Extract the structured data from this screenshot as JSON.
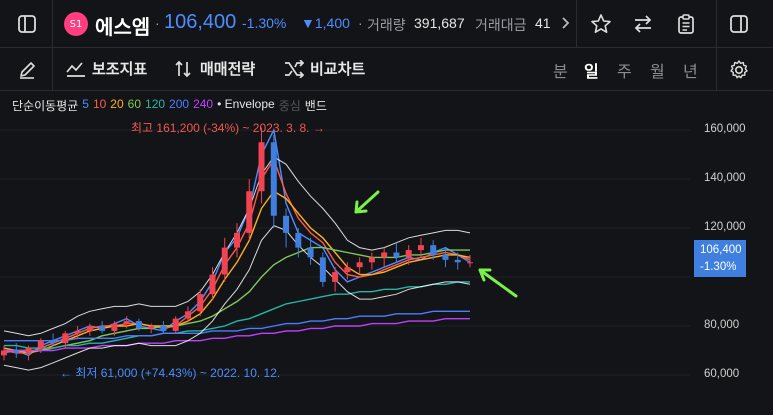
{
  "header": {
    "stock_symbol_icon_text": "S1",
    "stock_name": "에스엠",
    "price": "106,400",
    "change_pct": "-1.30%",
    "change_abs": "▼1,400",
    "volume_label": "거래량",
    "volume": "391,687",
    "amount_label": "거래대금",
    "amount": "41",
    "icons": [
      "sidebar-toggle-icon",
      "chevron-right-icon",
      "star-icon",
      "swap-icon",
      "clipboard-icon",
      "panel-toggle-icon"
    ]
  },
  "toolbar": {
    "items": [
      {
        "label": "보조지표",
        "icon": "indicator-icon"
      },
      {
        "label": "매매전략",
        "icon": "strategy-icon"
      },
      {
        "label": "비교차트",
        "icon": "compare-icon"
      }
    ],
    "periods": [
      {
        "label": "분",
        "active": false
      },
      {
        "label": "일",
        "active": true
      },
      {
        "label": "주",
        "active": false
      },
      {
        "label": "월",
        "active": false
      },
      {
        "label": "년",
        "active": false
      }
    ]
  },
  "legend": {
    "title": "단순이동평균",
    "periods": [
      {
        "label": "5",
        "color": "#4d8dff"
      },
      {
        "label": "10",
        "color": "#ff5a4a"
      },
      {
        "label": "20",
        "color": "#ffb020"
      },
      {
        "label": "60",
        "color": "#80c85a"
      },
      {
        "label": "120",
        "color": "#26b5a5"
      },
      {
        "label": "200",
        "color": "#4d7dff"
      },
      {
        "label": "240",
        "color": "#c040ff"
      }
    ],
    "envelope": "• Envelope",
    "partial": "중심",
    "band": "밴드"
  },
  "annotations": {
    "high": "최고 161,200 (-34%) ~ 2023. 3. 8. →",
    "low": "← 최저 61,000 (+74.43%) ~ 2022. 10. 12."
  },
  "chart_data": {
    "type": "line",
    "y_ticks": [
      "160,000",
      "140,000",
      "120,000",
      "100,000",
      "80,000",
      "60,000"
    ],
    "current_price_tag": {
      "value": "106,400",
      "change": "-1.30%"
    },
    "series": [
      {
        "name": "5",
        "color": "#4d8dff",
        "values": [
          69,
          70,
          68,
          72,
          74,
          76,
          78,
          80,
          79,
          81,
          83,
          80,
          79,
          78,
          82,
          85,
          90,
          98,
          110,
          116,
          128,
          150,
          160,
          130,
          118,
          115,
          112,
          103,
          98,
          100,
          102,
          104,
          106,
          108,
          107,
          110,
          112,
          109,
          106
        ]
      },
      {
        "name": "10",
        "color": "#ff5a4a",
        "values": [
          70,
          69,
          69,
          71,
          73,
          75,
          77,
          79,
          80,
          80,
          81,
          81,
          80,
          79,
          80,
          84,
          88,
          95,
          105,
          112,
          122,
          140,
          148,
          134,
          124,
          118,
          114,
          106,
          101,
          100,
          101,
          103,
          105,
          107,
          108,
          109,
          110,
          109,
          107
        ]
      },
      {
        "name": "20",
        "color": "#ffb020",
        "values": [
          71,
          70,
          69,
          70,
          72,
          74,
          76,
          78,
          79,
          80,
          80,
          81,
          80,
          80,
          80,
          82,
          85,
          91,
          99,
          106,
          115,
          128,
          135,
          132,
          126,
          120,
          116,
          110,
          104,
          101,
          101,
          102,
          104,
          106,
          107,
          108,
          109,
          109,
          108
        ]
      },
      {
        "name": "60",
        "color": "#80c85a",
        "values": [
          70,
          70,
          70,
          70,
          71,
          72,
          73,
          74,
          76,
          77,
          78,
          79,
          79,
          80,
          80,
          81,
          82,
          84,
          87,
          90,
          94,
          100,
          105,
          108,
          110,
          112,
          112,
          111,
          110,
          109,
          108,
          108,
          108,
          109,
          109,
          110,
          111,
          111,
          111
        ]
      },
      {
        "name": "120",
        "color": "#26b5a5",
        "values": [
          72,
          72,
          71,
          71,
          71,
          72,
          72,
          73,
          73,
          74,
          75,
          76,
          76,
          77,
          77,
          78,
          78,
          79,
          80,
          82,
          83,
          85,
          87,
          89,
          90,
          91,
          92,
          93,
          93,
          94,
          94,
          95,
          95,
          96,
          96,
          97,
          97,
          98,
          98
        ]
      },
      {
        "name": "200",
        "color": "#4d7dff",
        "values": [
          74,
          74,
          74,
          74,
          74,
          74,
          75,
          75,
          75,
          75,
          76,
          76,
          76,
          77,
          77,
          77,
          77,
          78,
          78,
          78,
          79,
          79,
          80,
          81,
          81,
          82,
          82,
          83,
          83,
          84,
          84,
          84,
          85,
          85,
          85,
          86,
          86,
          86,
          86
        ]
      },
      {
        "name": "240",
        "color": "#c040ff",
        "values": [
          70,
          70,
          70,
          70,
          70,
          71,
          71,
          71,
          72,
          72,
          72,
          73,
          73,
          73,
          74,
          74,
          74,
          75,
          75,
          76,
          76,
          77,
          77,
          78,
          78,
          79,
          79,
          80,
          80,
          80,
          81,
          81,
          81,
          82,
          82,
          82,
          83,
          83,
          83
        ]
      },
      {
        "name": "envelope-upper",
        "color": "#ffffff",
        "values": [
          78,
          77,
          76,
          77,
          79,
          81,
          84,
          86,
          87,
          88,
          88,
          89,
          88,
          88,
          88,
          90,
          94,
          101,
          110,
          118,
          128,
          142,
          149,
          146,
          139,
          133,
          128,
          122,
          115,
          112,
          111,
          112,
          114,
          116,
          117,
          118,
          119,
          119,
          118
        ]
      },
      {
        "name": "envelope-lower",
        "color": "#ffffff",
        "values": [
          64,
          63,
          62,
          63,
          65,
          67,
          69,
          71,
          71,
          72,
          72,
          73,
          72,
          72,
          72,
          74,
          77,
          82,
          89,
          95,
          103,
          115,
          121,
          119,
          113,
          108,
          104,
          99,
          94,
          91,
          91,
          92,
          93,
          95,
          96,
          97,
          98,
          98,
          97
        ]
      }
    ],
    "ylim": [
      55,
      170
    ],
    "candles": [
      [
        68,
        72,
        66,
        70
      ],
      [
        70,
        73,
        67,
        69
      ],
      [
        69,
        72,
        66,
        71
      ],
      [
        71,
        75,
        69,
        74
      ],
      [
        74,
        77,
        72,
        73
      ],
      [
        73,
        78,
        71,
        77
      ],
      [
        77,
        80,
        75,
        78
      ],
      [
        78,
        81,
        76,
        80
      ],
      [
        80,
        82,
        77,
        78
      ],
      [
        78,
        82,
        76,
        81
      ],
      [
        81,
        84,
        79,
        82
      ],
      [
        82,
        83,
        78,
        79
      ],
      [
        79,
        81,
        77,
        80
      ],
      [
        80,
        82,
        77,
        78
      ],
      [
        78,
        84,
        77,
        83
      ],
      [
        83,
        88,
        81,
        86
      ],
      [
        86,
        95,
        84,
        93
      ],
      [
        93,
        104,
        91,
        101
      ],
      [
        101,
        116,
        98,
        112
      ],
      [
        112,
        122,
        108,
        118
      ],
      [
        118,
        140,
        115,
        135
      ],
      [
        135,
        161,
        130,
        155
      ],
      [
        155,
        158,
        120,
        125
      ],
      [
        125,
        128,
        112,
        118
      ],
      [
        118,
        120,
        108,
        112
      ],
      [
        112,
        116,
        105,
        108
      ],
      [
        108,
        110,
        96,
        98
      ],
      [
        98,
        104,
        94,
        102
      ],
      [
        102,
        106,
        99,
        104
      ],
      [
        104,
        108,
        101,
        106
      ],
      [
        106,
        110,
        103,
        108
      ],
      [
        108,
        112,
        104,
        110
      ],
      [
        110,
        114,
        106,
        108
      ],
      [
        108,
        113,
        105,
        111
      ],
      [
        111,
        116,
        108,
        113
      ],
      [
        113,
        115,
        107,
        109
      ],
      [
        109,
        112,
        104,
        107
      ],
      [
        107,
        110,
        103,
        106
      ],
      [
        106,
        109,
        104,
        106
      ]
    ]
  }
}
